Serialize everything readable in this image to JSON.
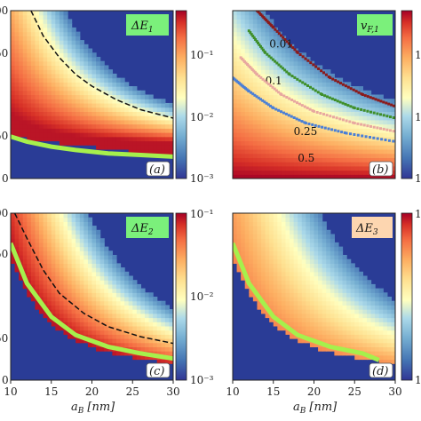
{
  "colors": {
    "background_blue": "#2a3c96",
    "deep_red": "#a50026",
    "hot_red": "#d73027",
    "orange": "#f46d43",
    "light_orange": "#fdae61",
    "pale_yellow": "#fee090",
    "near_white": "#ffffbf",
    "light_blue": "#abd9e9",
    "mid_blue": "#74add1",
    "blue": "#4575b4",
    "green_curve": "#a6f04c",
    "label_box_green": "#7bf07b",
    "label_box_peach": "#fdd6b0",
    "contour_001": "#8b1a1a",
    "contour_01": "#3f8f2a",
    "contour_025": "#e8a8a0",
    "contour_05": "#4a7fd6"
  },
  "chart_data": [
    {
      "id": "a",
      "type": "heatmap",
      "quantity_label_base": "ΔE",
      "quantity_label_sub": "1",
      "panel_tag": "(a)",
      "xlim": [
        10,
        30
      ],
      "ylim": [
        0,
        100
      ],
      "x_ticks": [],
      "y_ticks": [
        "0",
        "50",
        "50",
        "00"
      ],
      "xlabel": "",
      "colorbar": {
        "scale": "log",
        "range": [
          0.001,
          0.5
        ],
        "ticks": [
          "10⁻¹",
          "10⁻²",
          "10⁻³"
        ]
      },
      "green_curve": [
        [
          10,
          25
        ],
        [
          12,
          22
        ],
        [
          15,
          19
        ],
        [
          18,
          17
        ],
        [
          22,
          15
        ],
        [
          26,
          14
        ],
        [
          30,
          13
        ]
      ],
      "dashed_curve": [
        [
          12.5,
          100
        ],
        [
          14,
          85
        ],
        [
          16,
          72
        ],
        [
          18,
          62
        ],
        [
          20,
          55
        ],
        [
          23,
          47
        ],
        [
          26,
          41
        ],
        [
          30,
          36
        ]
      ]
    },
    {
      "id": "b",
      "type": "heatmap",
      "quantity_label_base": "v",
      "quantity_label_sub": "F,1",
      "panel_tag": "(b)",
      "xlim": [
        10,
        30
      ],
      "ylim": [
        0,
        100
      ],
      "x_ticks": [],
      "y_ticks": [],
      "xlabel": "",
      "colorbar": {
        "scale": "linear",
        "range": [
          0,
          1
        ],
        "ticks": [
          "1",
          "1",
          "1"
        ]
      },
      "contours": [
        {
          "label": "0.01",
          "points": [
            [
              13,
              100
            ],
            [
              15,
              90
            ],
            [
              18,
              75
            ],
            [
              22,
              60
            ],
            [
              26,
              50
            ],
            [
              30,
              43
            ]
          ]
        },
        {
          "label": "0.1",
          "points": [
            [
              12,
              88
            ],
            [
              14,
              75
            ],
            [
              17,
              62
            ],
            [
              21,
              50
            ],
            [
              25,
              42
            ],
            [
              30,
              36
            ]
          ]
        },
        {
          "label": "0.25",
          "points": [
            [
              11,
              72
            ],
            [
              13,
              62
            ],
            [
              16,
              50
            ],
            [
              20,
              40
            ],
            [
              25,
              33
            ],
            [
              30,
              28
            ]
          ]
        },
        {
          "label": "0.5",
          "points": [
            [
              10,
              60
            ],
            [
              12,
              52
            ],
            [
              15,
              42
            ],
            [
              19,
              33
            ],
            [
              24,
              27
            ],
            [
              30,
              22
            ]
          ]
        }
      ]
    },
    {
      "id": "c",
      "type": "heatmap",
      "quantity_label_base": "ΔE",
      "quantity_label_sub": "2",
      "panel_tag": "(c)",
      "xlim": [
        10,
        30
      ],
      "ylim": [
        0,
        100
      ],
      "x_ticks": [
        "10",
        "15",
        "20",
        "25",
        "30"
      ],
      "y_ticks": [
        "0",
        "50",
        "50",
        "00"
      ],
      "xlabel_main": "a",
      "xlabel_sub": "B",
      "xlabel_unit": "[nm]",
      "colorbar": {
        "scale": "log",
        "range": [
          0.001,
          0.1
        ],
        "ticks": [
          "10⁻¹",
          "10⁻²",
          "10⁻³"
        ]
      },
      "green_curve": [
        [
          10,
          82
        ],
        [
          12,
          58
        ],
        [
          15,
          38
        ],
        [
          18,
          27
        ],
        [
          22,
          20
        ],
        [
          26,
          16
        ],
        [
          30,
          13
        ]
      ],
      "dashed_curve": [
        [
          10.5,
          100
        ],
        [
          12,
          85
        ],
        [
          14,
          66
        ],
        [
          16,
          52
        ],
        [
          19,
          40
        ],
        [
          22,
          32
        ],
        [
          26,
          26
        ],
        [
          30,
          22
        ]
      ]
    },
    {
      "id": "d",
      "type": "heatmap",
      "quantity_label_base": "ΔE",
      "quantity_label_sub": "3",
      "panel_tag": "(d)",
      "xlim": [
        10,
        30
      ],
      "ylim": [
        0,
        100
      ],
      "x_ticks": [
        "10",
        "15",
        "20",
        "25",
        "30"
      ],
      "y_ticks": [],
      "xlabel_main": "a",
      "xlabel_sub": "B",
      "xlabel_unit": "[nm]",
      "colorbar": {
        "scale": "log",
        "range": [
          0.001,
          0.1
        ],
        "ticks": [
          "1",
          "1"
        ]
      },
      "green_curve": [
        [
          10,
          82
        ],
        [
          12,
          58
        ],
        [
          15,
          38
        ],
        [
          18,
          27
        ],
        [
          22,
          20
        ],
        [
          26,
          16
        ],
        [
          28,
          12
        ]
      ]
    }
  ]
}
